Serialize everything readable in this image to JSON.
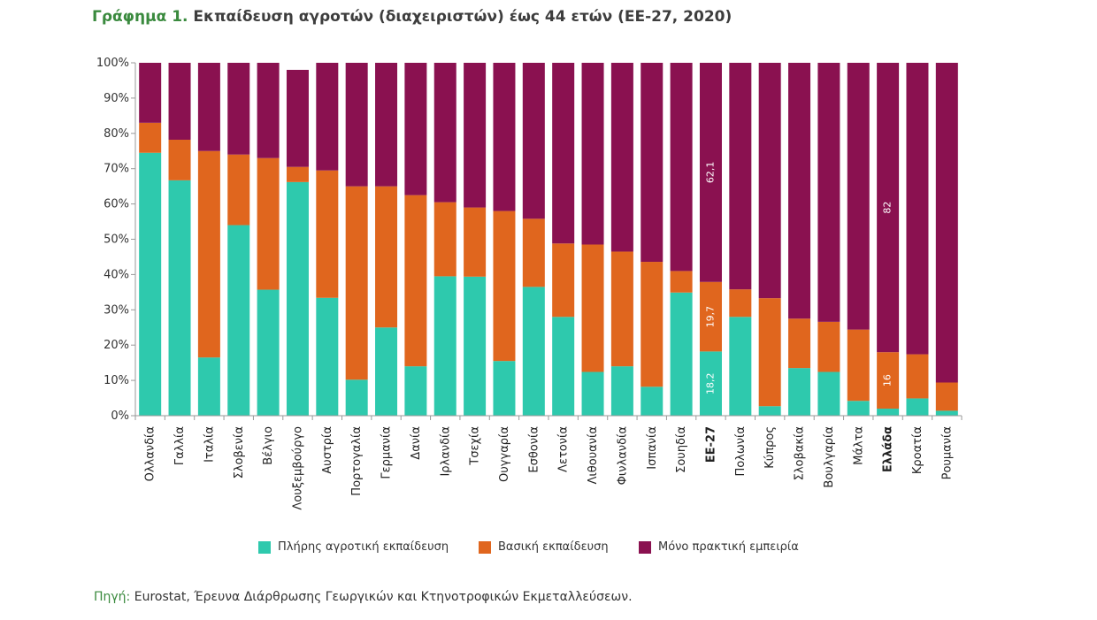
{
  "header": {
    "title_prefix": "Γράφημα 1.",
    "title_text": "Εκπαίδευση αγροτών (διαχειριστών) έως 44 ετών (ΕΕ-27, 2020)"
  },
  "footer": {
    "source_prefix": "Πηγή:",
    "source_text": "Eurostat, Έρευνα Διάρθρωσης Γεωργικών και Κτηνοτροφικών Εκμεταλλεύσεων."
  },
  "colors": {
    "full": "#2ec9ad",
    "basic": "#e0661e",
    "practical": "#8a1150",
    "axis": "#999999"
  },
  "chart_data": {
    "type": "bar",
    "stacked": true,
    "ylim": [
      0,
      100
    ],
    "yticks": [
      "0%",
      "10%",
      "20%",
      "30%",
      "40%",
      "50%",
      "60%",
      "70%",
      "80%",
      "90%",
      "100%"
    ],
    "categories": [
      "Ολλανδία",
      "Γαλλία",
      "Ιταλία",
      "Σλοβενία",
      "Βέλγιο",
      "Λουξεμβούργο",
      "Αυστρία",
      "Πορτογαλία",
      "Γερμανία",
      "Δανία",
      "Ιρλανδία",
      "Τσεχία",
      "Ουγγαρία",
      "Εσθονία",
      "Λετονία",
      "Λιθουανία",
      "Φινλανδία",
      "Ισπανία",
      "Σουηδία",
      "ΕΕ-27",
      "Πολωνία",
      "Κύπρος",
      "Σλοβακία",
      "Βουλγαρία",
      "Μάλτα",
      "Ελλάδα",
      "Κροατία",
      "Ρουμανία"
    ],
    "bold_categories": [
      "ΕΕ-27",
      "Ελλάδα"
    ],
    "series": [
      {
        "name": "Πλήρης αγροτική εκπαίδευση",
        "key": "full",
        "values": [
          74.5,
          66.7,
          16.5,
          54.0,
          35.7,
          66.2,
          33.4,
          10.2,
          25.0,
          14.0,
          39.5,
          39.4,
          15.5,
          36.5,
          28.0,
          12.4,
          14.0,
          8.2,
          34.9,
          18.2,
          28.0,
          2.7,
          13.5,
          12.4,
          4.2,
          2.0,
          4.9,
          1.4
        ]
      },
      {
        "name": "Βασική εκπαίδευση",
        "key": "basic",
        "values": [
          8.5,
          11.5,
          58.5,
          20.0,
          37.3,
          4.3,
          36.1,
          54.8,
          40.0,
          48.5,
          21.0,
          19.6,
          42.5,
          19.3,
          20.8,
          36.1,
          32.5,
          35.4,
          6.1,
          19.7,
          7.8,
          30.6,
          14.0,
          14.2,
          20.2,
          16.0,
          12.5,
          8.0
        ]
      },
      {
        "name": "Μόνο πρακτική εμπειρία",
        "key": "practical",
        "values": [
          17.0,
          21.8,
          25.0,
          26.0,
          27.0,
          27.5,
          30.5,
          35.0,
          35.0,
          37.5,
          39.5,
          41.0,
          42.0,
          44.2,
          51.2,
          51.5,
          53.5,
          56.4,
          59.0,
          62.1,
          64.2,
          66.7,
          72.5,
          73.4,
          75.6,
          82.0,
          82.6,
          90.6
        ]
      }
    ],
    "data_labels": [
      {
        "category": "ΕΕ-27",
        "series": "full",
        "text": "18,2"
      },
      {
        "category": "ΕΕ-27",
        "series": "basic",
        "text": "19,7"
      },
      {
        "category": "ΕΕ-27",
        "series": "practical",
        "text": "62,1"
      },
      {
        "category": "Ελλάδα",
        "series": "basic",
        "text": "16"
      },
      {
        "category": "Ελλάδα",
        "series": "practical",
        "text": "82"
      }
    ],
    "legend_position": "bottom",
    "grid": false
  }
}
